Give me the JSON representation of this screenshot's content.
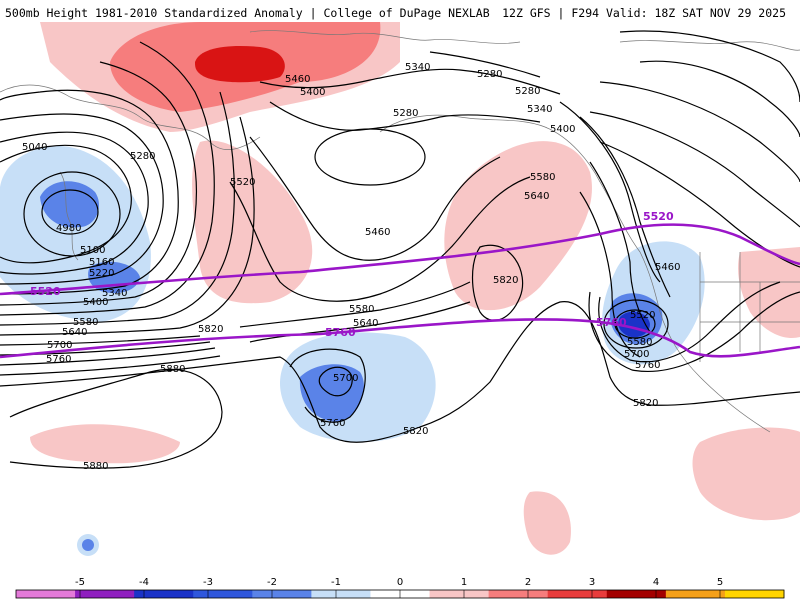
{
  "header": {
    "title_left": "500mb Height 1981-2010 Standardized Anomaly | College of DuPage NEXLAB",
    "title_right": "12Z GFS | F294 Valid: 18Z SAT NOV 29 2025"
  },
  "colors": {
    "pos1": "#f8c6c6",
    "pos2": "#f67d7d",
    "pos3": "#d91414",
    "neg1": "#c7dff7",
    "neg2": "#5a83e8",
    "neg3": "#1a33c8",
    "contour": "#000000",
    "highlight": "#9a16c8",
    "coast": "#777777"
  },
  "contour_labels": {
    "c5040": "5040",
    "c4980": "4980",
    "c5100": "5100",
    "c5160": "5160",
    "c5220": "5220",
    "c5280a": "5280",
    "c5280b": "5280",
    "c5280c": "5280",
    "c5280d": "5280",
    "c5340a": "5340",
    "c5340b": "5340",
    "c5340c": "5340",
    "c5400a": "5400",
    "c5400b": "5400",
    "c5400c": "5400",
    "c5460a": "5460",
    "c5460b": "5460",
    "c5460c": "5460",
    "c5520a": "5520",
    "c5520b": "5520",
    "c5580a": "5580",
    "c5580b": "5580",
    "c5580c": "5580",
    "c5580d": "5580",
    "c5640a": "5640",
    "c5640b": "5640",
    "c5640c": "5640",
    "c5700a": "5700",
    "c5700b": "5700",
    "c5700c": "5700",
    "c5760a": "5760",
    "c5760b": "5760",
    "c5760c": "5760",
    "c5820a": "5820",
    "c5820b": "5820",
    "c5820c": "5820",
    "c5820d": "5820",
    "c5880a": "5880",
    "c5880b": "5880"
  },
  "highlight_labels": {
    "h5520w": "5520",
    "h5520e": "5520",
    "h5760c": "5760",
    "h5760e": "5760"
  },
  "colorbar": {
    "min": -6,
    "max": 6,
    "ticks": [
      "-5",
      "-4",
      "-3",
      "-2",
      "-1",
      "0",
      "1",
      "2",
      "3",
      "4",
      "5"
    ],
    "colors": [
      "#e47ad9",
      "#8f1fbf",
      "#1a33c8",
      "#2f57dc",
      "#5a83e8",
      "#c7dff7",
      "#ffffff",
      "#f8c6c6",
      "#f67d7d",
      "#e83c3c",
      "#a30000",
      "#f5a019",
      "#ffd400"
    ]
  }
}
